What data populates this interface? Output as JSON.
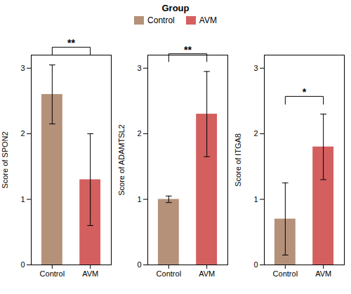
{
  "chart_data": [
    {
      "type": "bar",
      "ylabel": "Score of SPON2",
      "categories": [
        "Control",
        "AVM"
      ],
      "values": [
        2.6,
        1.3
      ],
      "errors": [
        0.45,
        0.7
      ],
      "colors": [
        "#b5917a",
        "#d45f5f"
      ],
      "ylim": [
        0,
        3.2
      ],
      "yticks": [
        0,
        1,
        2,
        3
      ],
      "annotation": "**",
      "legend": "top",
      "legend_title": "Group"
    },
    {
      "type": "bar",
      "ylabel": "Score of ADAMTSL2",
      "categories": [
        "Control",
        "AVM"
      ],
      "values": [
        1.0,
        2.3
      ],
      "errors": [
        0.05,
        0.65
      ],
      "colors": [
        "#b5917a",
        "#d45f5f"
      ],
      "ylim": [
        0,
        3.2
      ],
      "yticks": [
        0,
        1,
        2,
        3
      ],
      "annotation": "**"
    },
    {
      "type": "bar",
      "ylabel": "Score of ITGA8",
      "categories": [
        "Control",
        "AVM"
      ],
      "values": [
        0.7,
        1.8
      ],
      "errors": [
        0.55,
        0.5
      ],
      "colors": [
        "#b5917a",
        "#d45f5f"
      ],
      "ylim": [
        0,
        3.2
      ],
      "yticks": [
        0,
        1,
        2,
        3
      ],
      "annotation": "*"
    }
  ]
}
